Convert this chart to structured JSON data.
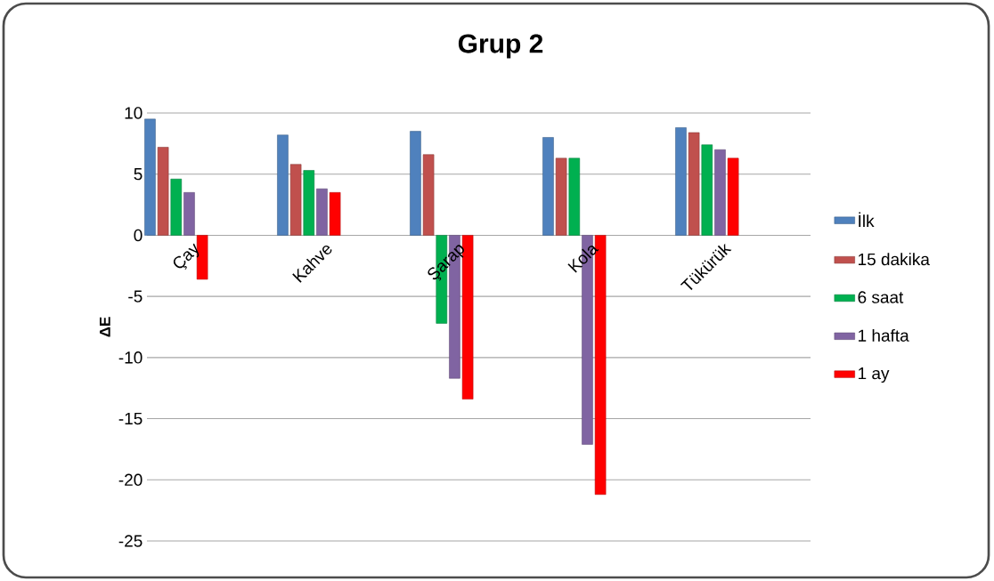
{
  "chart_data": {
    "type": "bar",
    "title": "Grup 2",
    "ylabel": "ΔE",
    "categories": [
      "Çay",
      "Kahve",
      "Şarap",
      "Kola",
      "Tükürük"
    ],
    "series": [
      {
        "name": "İlk",
        "color": "#4f81bd",
        "values": [
          9.5,
          8.2,
          8.5,
          8.0,
          8.8
        ]
      },
      {
        "name": "15 dakika",
        "color": "#c0504d",
        "values": [
          7.2,
          5.8,
          6.6,
          6.3,
          8.4
        ]
      },
      {
        "name": "6 saat",
        "color": "#00b050",
        "values": [
          4.6,
          5.3,
          -7.2,
          6.3,
          7.4
        ]
      },
      {
        "name": "1 hafta",
        "color": "#8064a2",
        "values": [
          3.5,
          3.8,
          -11.7,
          -17.1,
          7.0
        ]
      },
      {
        "name": "1 ay",
        "color": "#ff0000",
        "values": [
          -3.6,
          3.5,
          -13.4,
          -21.2,
          6.3
        ]
      }
    ],
    "ylim": [
      -25,
      10
    ],
    "yticks": [
      -25,
      -20,
      -15,
      -10,
      -5,
      0,
      5,
      10
    ],
    "grid": "y",
    "legend": "right"
  }
}
